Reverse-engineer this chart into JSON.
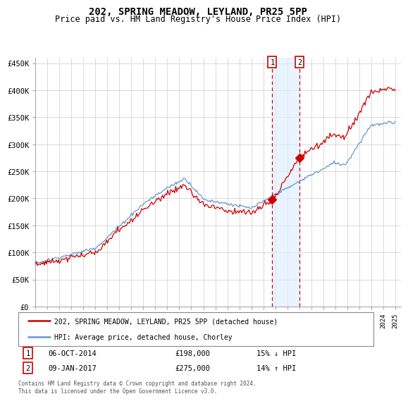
{
  "title": "202, SPRING MEADOW, LEYLAND, PR25 5PP",
  "subtitle": "Price paid vs. HM Land Registry's House Price Index (HPI)",
  "title_fontsize": 10,
  "subtitle_fontsize": 8.5,
  "ylabel_ticks": [
    "£0",
    "£50K",
    "£100K",
    "£150K",
    "£200K",
    "£250K",
    "£300K",
    "£350K",
    "£400K",
    "£450K"
  ],
  "ytick_values": [
    0,
    50000,
    100000,
    150000,
    200000,
    250000,
    300000,
    350000,
    400000,
    450000
  ],
  "ylim": [
    0,
    460000
  ],
  "xlim_start": 1995.0,
  "xlim_end": 2025.5,
  "line1_color": "#cc0000",
  "line2_color": "#6699cc",
  "shaded_color": "#ddeeff",
  "vline_color": "#cc0000",
  "legend_label1": "202, SPRING MEADOW, LEYLAND, PR25 5PP (detached house)",
  "legend_label2": "HPI: Average price, detached house, Chorley",
  "event1_x": 2014.75,
  "event1_y": 198000,
  "event2_x": 2017.03,
  "event2_y": 275000,
  "event1_date": "06-OCT-2014",
  "event1_price": "£198,000",
  "event1_hpi": "15% ↓ HPI",
  "event2_date": "09-JAN-2017",
  "event2_price": "£275,000",
  "event2_hpi": "14% ↑ HPI",
  "footer": "Contains HM Land Registry data © Crown copyright and database right 2024.\nThis data is licensed under the Open Government Licence v3.0."
}
